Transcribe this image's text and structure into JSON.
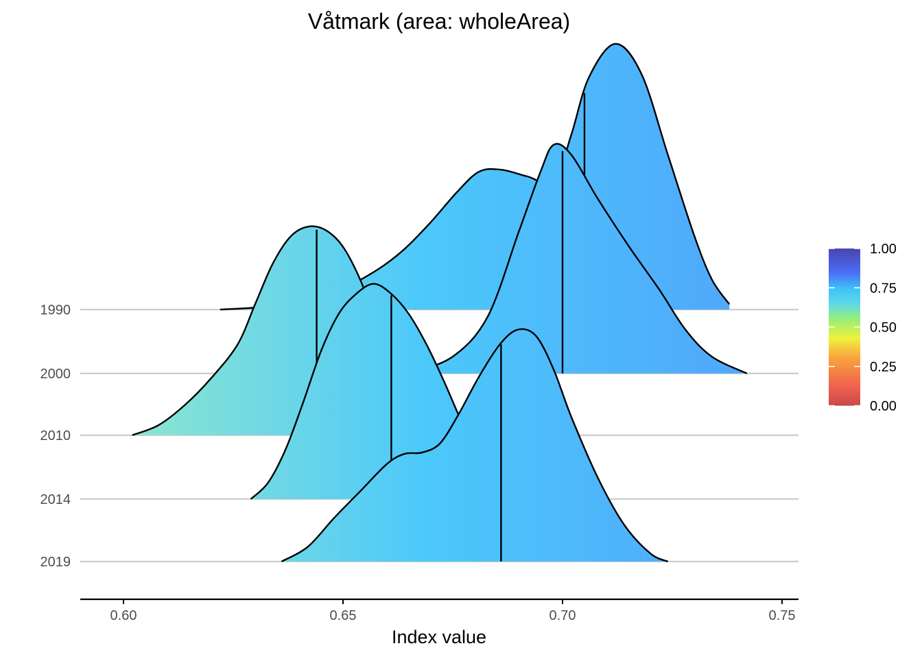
{
  "chart_data": {
    "type": "ridgeline",
    "title": "Våtmark (area: wholeArea)",
    "xlabel": "Index value",
    "xlim": [
      0.59,
      0.754
    ],
    "xticks": [
      0.6,
      0.65,
      0.7,
      0.75
    ],
    "xtick_labels": [
      "0.60",
      "0.65",
      "0.70",
      "0.75"
    ],
    "categories": [
      "1990",
      "2000",
      "2010",
      "2014",
      "2019"
    ],
    "series": [
      {
        "name": "1990",
        "median": 0.705,
        "density": [
          [
            0.622,
            0.0
          ],
          [
            0.632,
            0.04
          ],
          [
            0.64,
            0.12
          ],
          [
            0.65,
            0.32
          ],
          [
            0.658,
            0.6
          ],
          [
            0.664,
            0.9
          ],
          [
            0.67,
            1.3
          ],
          [
            0.676,
            1.75
          ],
          [
            0.681,
            2.05
          ],
          [
            0.686,
            2.08
          ],
          [
            0.692,
            1.98
          ],
          [
            0.698,
            1.9
          ],
          [
            0.702,
            2.6
          ],
          [
            0.706,
            3.45
          ],
          [
            0.712,
            3.95
          ],
          [
            0.718,
            3.5
          ],
          [
            0.724,
            2.3
          ],
          [
            0.73,
            1.1
          ],
          [
            0.734,
            0.45
          ],
          [
            0.738,
            0.08
          ]
        ]
      },
      {
        "name": "2000",
        "median": 0.7,
        "density": [
          [
            0.665,
            0.0
          ],
          [
            0.675,
            0.25
          ],
          [
            0.683,
            0.85
          ],
          [
            0.69,
            2.1
          ],
          [
            0.695,
            3.0
          ],
          [
            0.698,
            3.4
          ],
          [
            0.702,
            3.25
          ],
          [
            0.708,
            2.6
          ],
          [
            0.715,
            1.9
          ],
          [
            0.722,
            1.25
          ],
          [
            0.728,
            0.65
          ],
          [
            0.734,
            0.25
          ],
          [
            0.742,
            0.0
          ]
        ]
      },
      {
        "name": "2010",
        "median": 0.644,
        "density": [
          [
            0.602,
            0.0
          ],
          [
            0.608,
            0.15
          ],
          [
            0.614,
            0.45
          ],
          [
            0.62,
            0.85
          ],
          [
            0.626,
            1.35
          ],
          [
            0.63,
            1.95
          ],
          [
            0.634,
            2.55
          ],
          [
            0.638,
            2.95
          ],
          [
            0.642,
            3.1
          ],
          [
            0.646,
            3.05
          ],
          [
            0.65,
            2.8
          ],
          [
            0.654,
            2.3
          ],
          [
            0.658,
            1.6
          ],
          [
            0.662,
            0.95
          ],
          [
            0.666,
            0.45
          ],
          [
            0.67,
            0.1
          ]
        ]
      },
      {
        "name": "2014",
        "median": 0.661,
        "density": [
          [
            0.629,
            0.0
          ],
          [
            0.633,
            0.25
          ],
          [
            0.637,
            0.75
          ],
          [
            0.641,
            1.45
          ],
          [
            0.645,
            2.2
          ],
          [
            0.649,
            2.75
          ],
          [
            0.653,
            3.05
          ],
          [
            0.657,
            3.2
          ],
          [
            0.661,
            3.05
          ],
          [
            0.665,
            2.75
          ],
          [
            0.669,
            2.3
          ],
          [
            0.673,
            1.75
          ],
          [
            0.677,
            1.15
          ],
          [
            0.681,
            0.6
          ],
          [
            0.684,
            0.2
          ],
          [
            0.686,
            0.0
          ]
        ]
      },
      {
        "name": "2019",
        "median": 0.686,
        "density": [
          [
            0.636,
            0.0
          ],
          [
            0.642,
            0.22
          ],
          [
            0.648,
            0.65
          ],
          [
            0.654,
            1.05
          ],
          [
            0.66,
            1.45
          ],
          [
            0.664,
            1.6
          ],
          [
            0.668,
            1.62
          ],
          [
            0.672,
            1.75
          ],
          [
            0.676,
            2.15
          ],
          [
            0.681,
            2.75
          ],
          [
            0.686,
            3.25
          ],
          [
            0.69,
            3.45
          ],
          [
            0.694,
            3.35
          ],
          [
            0.698,
            2.85
          ],
          [
            0.702,
            2.15
          ],
          [
            0.708,
            1.25
          ],
          [
            0.714,
            0.55
          ],
          [
            0.72,
            0.12
          ],
          [
            0.724,
            0.0
          ]
        ]
      }
    ],
    "legend": {
      "placement": "right",
      "ticks": [
        "0.00",
        "0.25",
        "0.50",
        "0.75",
        "1.00"
      ],
      "stops": [
        {
          "value": 0.0,
          "color": "#c84a4a"
        },
        {
          "value": 0.12,
          "color": "#f06050"
        },
        {
          "value": 0.3,
          "color": "#f8a23c"
        },
        {
          "value": 0.43,
          "color": "#eef23c"
        },
        {
          "value": 0.55,
          "color": "#98ee7a"
        },
        {
          "value": 0.65,
          "color": "#5ed8e8"
        },
        {
          "value": 0.74,
          "color": "#3fc4f8"
        },
        {
          "value": 0.85,
          "color": "#4a6cf5"
        },
        {
          "value": 1.0,
          "color": "#4a44b0"
        }
      ]
    },
    "fill_colors": [
      "#8de6d0",
      "#4cc8fb",
      "#50a7fb"
    ],
    "grid": true
  }
}
